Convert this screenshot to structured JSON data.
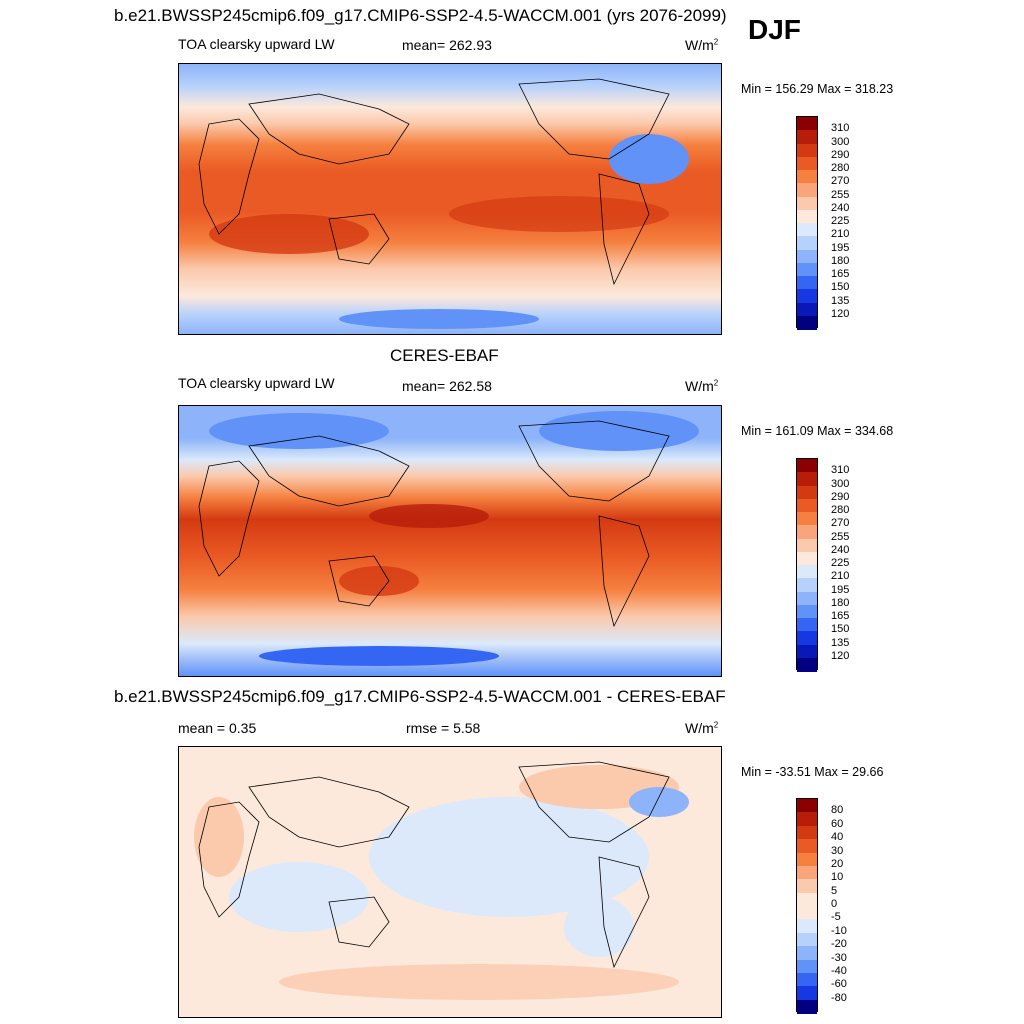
{
  "page": {
    "case_title": "b.e21.BWSSP245cmip6.f09_g17.CMIP6-SSP2-4.5-WACCM.001 (yrs 2076-2099)",
    "season": "DJF",
    "obs_title": "CERES-EBAF",
    "diff_title": "b.e21.BWSSP245cmip6.f09_g17.CMIP6-SSP2-4.5-WACCM.001 - CERES-EBAF"
  },
  "panels": [
    {
      "id": "model",
      "variable": "TOA clearsky upward LW",
      "stat": "mean= 262.93",
      "unit": "W/m",
      "unit_exp": "2",
      "minmax": "Min = 156.29 Max = 318.23"
    },
    {
      "id": "obs",
      "variable": "TOA clearsky upward LW",
      "stat": "mean= 262.58",
      "unit": "W/m",
      "unit_exp": "2",
      "minmax": "Min = 161.09 Max = 334.68"
    },
    {
      "id": "diff",
      "variable": "mean =   0.35",
      "stat": "rmse =   5.58",
      "unit": "W/m",
      "unit_exp": "2",
      "minmax": "Min = -33.51 Max =  29.66"
    }
  ],
  "colorbars": {
    "main": {
      "labels": [
        "310",
        "300",
        "290",
        "280",
        "270",
        "255",
        "240",
        "225",
        "210",
        "195",
        "180",
        "165",
        "150",
        "135",
        "120"
      ],
      "colors": [
        "#8b0000",
        "#b81d0a",
        "#d43a12",
        "#ea5a24",
        "#f5803f",
        "#f9a47a",
        "#fbc9ac",
        "#fce9dc",
        "#dbe9fb",
        "#b6d1fb",
        "#8db4fa",
        "#6092f8",
        "#3466f3",
        "#1638e3",
        "#0919b8",
        "#000080"
      ]
    },
    "diff": {
      "labels": [
        "80",
        "60",
        "40",
        "30",
        "20",
        "10",
        "5",
        "0",
        "-5",
        "-10",
        "-20",
        "-30",
        "-40",
        "-60",
        "-80"
      ],
      "colors": [
        "#8b0000",
        "#b81d0a",
        "#d43a12",
        "#ea5a24",
        "#f5803f",
        "#f9a47a",
        "#fbc9ac",
        "#fce9dc",
        "#fce9dc",
        "#dbe9fb",
        "#b6d1fb",
        "#8db4fa",
        "#6092f8",
        "#3466f3",
        "#1638e3",
        "#000080"
      ]
    }
  }
}
